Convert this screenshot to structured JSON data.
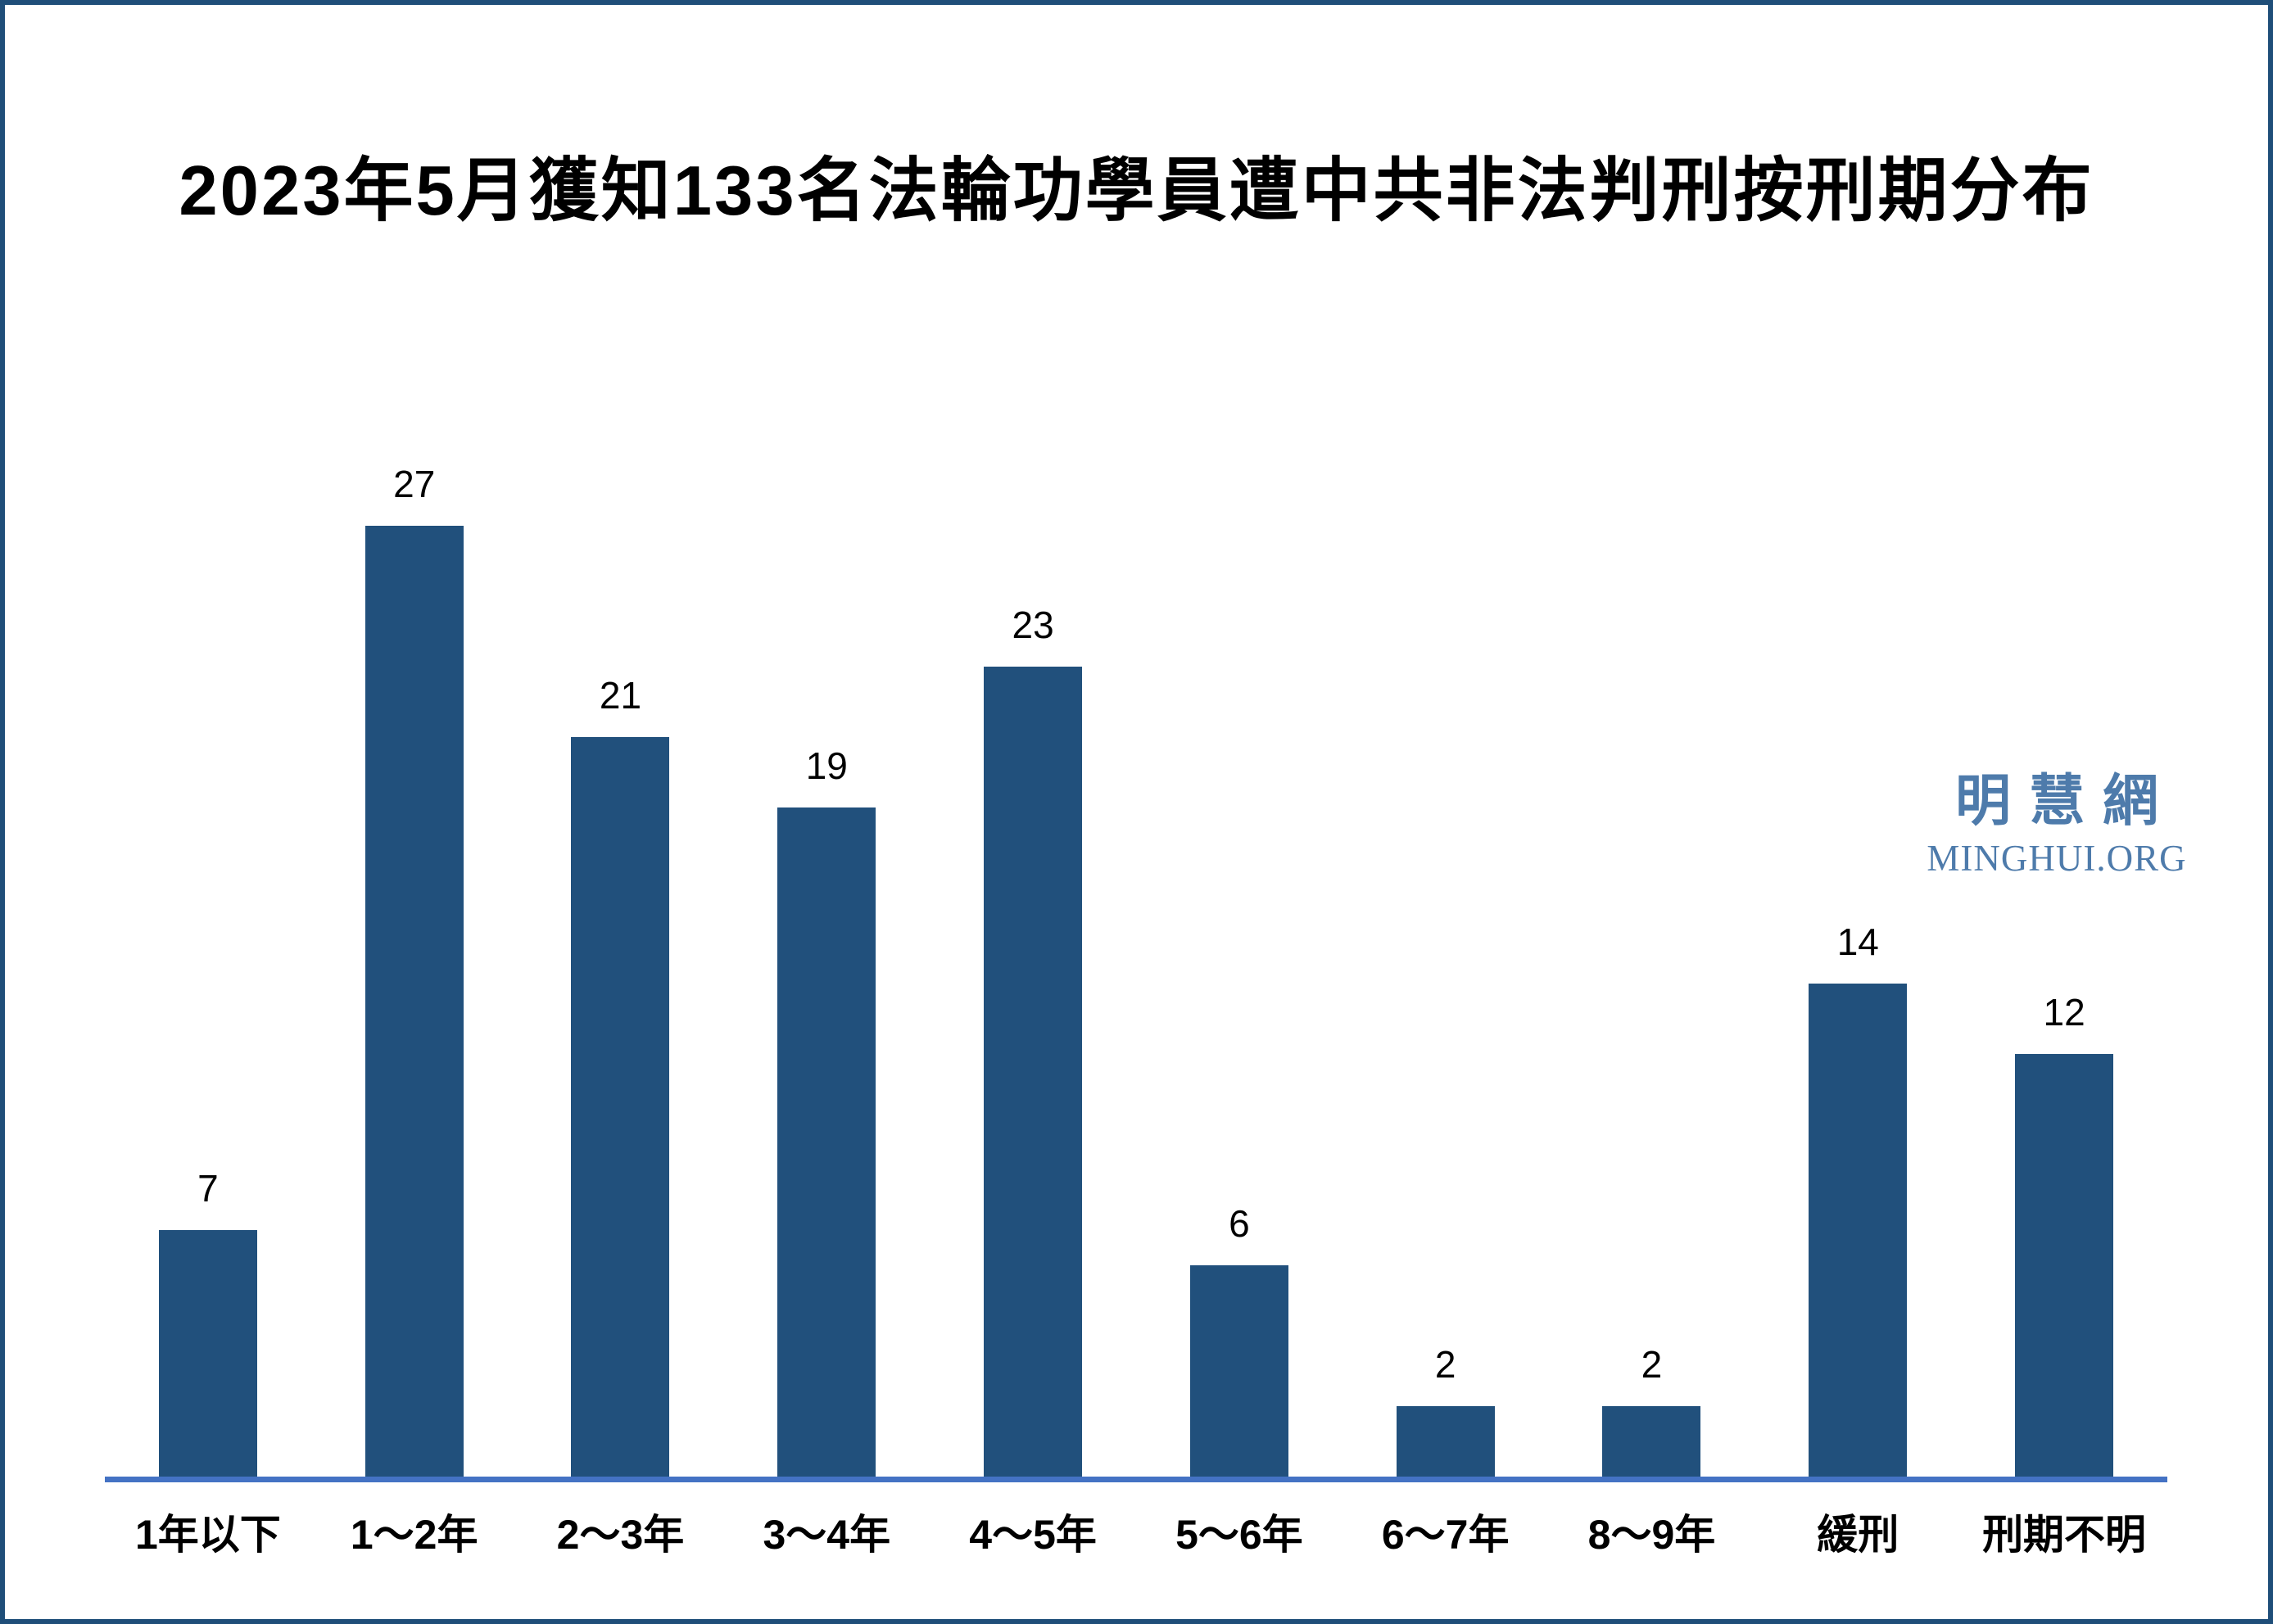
{
  "chart_data": {
    "type": "bar",
    "title": "2023年5月獲知133名法輪功學員遭中共非法判刑按刑期分布",
    "categories": [
      "1年以下",
      "1～2年",
      "2～3年",
      "3～4年",
      "4～5年",
      "5～6年",
      "6～7年",
      "8～9年",
      "緩刑",
      "刑期不明"
    ],
    "values": [
      7,
      27,
      21,
      19,
      23,
      6,
      2,
      2,
      14,
      12
    ],
    "xlabel": "",
    "ylabel": "",
    "ylim": [
      0,
      28
    ],
    "grid": false,
    "legend": false,
    "data_labels": true,
    "bar_color": "#21507c",
    "axis_line_color": "#4472c4",
    "label_color": "#000000"
  },
  "frame": {
    "border_color": "#1f4e79",
    "background_color": "#ffffff"
  },
  "watermark": {
    "cjk": "明慧網",
    "latin": "MINGHUI.ORG",
    "color": "#4e7bab"
  }
}
